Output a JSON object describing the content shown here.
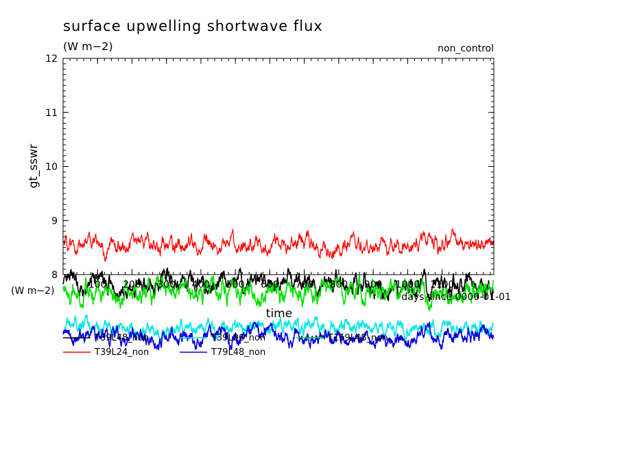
{
  "chart_data": {
    "type": "line",
    "title": "surface upwelling shortwave flux",
    "units": "(W m−2)",
    "experiment": "non_control",
    "ylabel": "gt_sswr",
    "xlabel": "time",
    "ylim": [
      8,
      12
    ],
    "yticks": [
      "8",
      "9",
      "10",
      "11",
      "12"
    ],
    "xlim": [
      0,
      1250
    ],
    "xticks": [
      "100",
      "200",
      "300",
      "400",
      "500",
      "600",
      "700",
      "800",
      "900",
      "1000",
      "1100"
    ],
    "x_units_left": "(W m−2)",
    "x_axis_note": "days since 0000-01-01",
    "grid": false,
    "legend": "bottom",
    "series": [
      {
        "name": "T39L48_non",
        "color": "#000000",
        "mean": 7.8,
        "amp": 0.22,
        "seed": 3
      },
      {
        "name": "T39L96_non",
        "color": "#00e5e5",
        "mean": 7.0,
        "amp": 0.16,
        "seed": 11
      },
      {
        "name": "T159L48_non",
        "color": "#00e000",
        "mean": 7.7,
        "amp": 0.24,
        "seed": 7
      },
      {
        "name": "T39L24_non",
        "color": "#ff0000",
        "mean": 8.55,
        "amp": 0.2,
        "seed": 5
      },
      {
        "name": "T79L48_non",
        "color": "#0000dd",
        "mean": 6.85,
        "amp": 0.18,
        "seed": 19
      }
    ]
  }
}
